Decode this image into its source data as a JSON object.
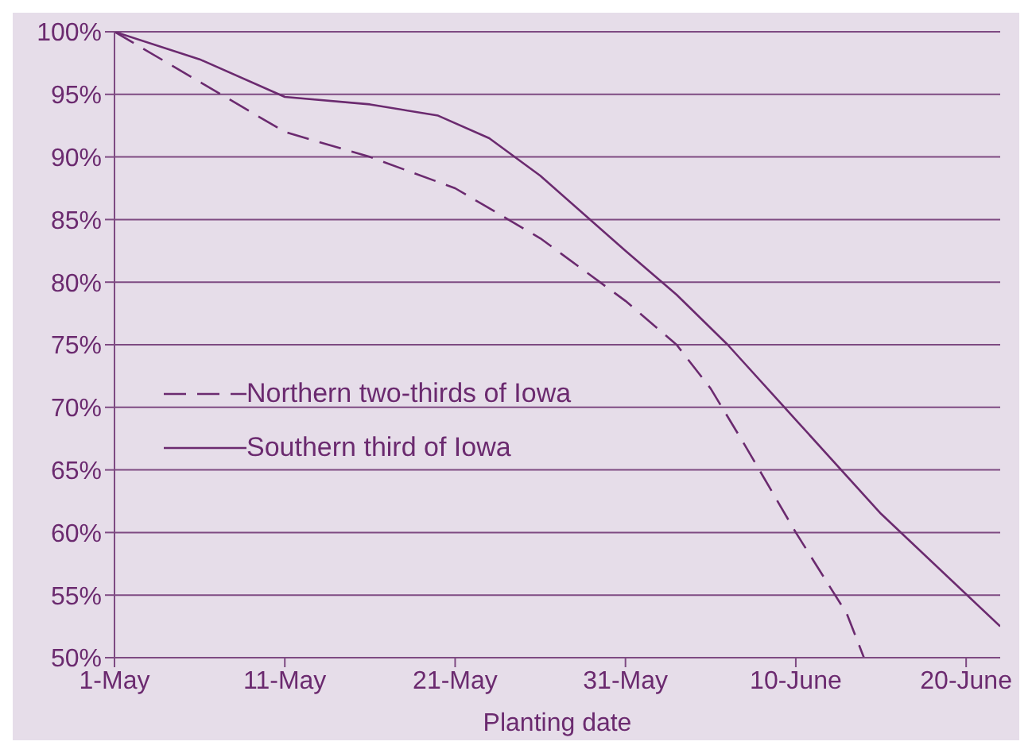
{
  "chart_data": {
    "type": "line",
    "xlabel": "Planting date",
    "xlim": [
      "--05-01",
      "--06-22"
    ],
    "xticks": [
      {
        "value": "--05-01",
        "label": "1-May"
      },
      {
        "value": "--05-11",
        "label": "11-May"
      },
      {
        "value": "--05-21",
        "label": "21-May"
      },
      {
        "value": "--05-31",
        "label": "31-May"
      },
      {
        "value": "--06-10",
        "label": "10-June"
      },
      {
        "value": "--06-20",
        "label": "20-June"
      }
    ],
    "ylim": [
      50,
      100
    ],
    "yticks": [
      {
        "value": 50,
        "label": "50%"
      },
      {
        "value": 55,
        "label": "55%"
      },
      {
        "value": 60,
        "label": "60%"
      },
      {
        "value": 65,
        "label": "65%"
      },
      {
        "value": 70,
        "label": "70%"
      },
      {
        "value": 75,
        "label": "75%"
      },
      {
        "value": 80,
        "label": "80%"
      },
      {
        "value": 85,
        "label": "85%"
      },
      {
        "value": 90,
        "label": "90%"
      },
      {
        "value": 95,
        "label": "95%"
      },
      {
        "value": 100,
        "label": "100%"
      }
    ],
    "grid": "y",
    "legend": "left",
    "series": [
      {
        "name": "Northern two-thirds of Iowa",
        "color": "#6b2a6f",
        "line_style": "dashed",
        "x": [
          "--05-01",
          "--05-06",
          "--05-11",
          "--05-16",
          "--05-21",
          "--05-26",
          "--05-31",
          "--06-03",
          "--06-05",
          "--06-07",
          "--06-10",
          "--06-13",
          "--06-14"
        ],
        "values": [
          100,
          96,
          92,
          90,
          87.5,
          83.5,
          78.5,
          75,
          71.5,
          67,
          60,
          53.5,
          50
        ]
      },
      {
        "name": "Southern third of Iowa",
        "color": "#6b2a6f",
        "line_style": "solid",
        "x": [
          "--05-01",
          "--05-06",
          "--05-11",
          "--05-16",
          "--05-20",
          "--05-23",
          "--05-26",
          "--05-31",
          "--06-03",
          "--06-06",
          "--06-10",
          "--06-15",
          "--06-22"
        ],
        "values": [
          100,
          97.8,
          94.8,
          94.2,
          93.3,
          91.5,
          88.5,
          82.5,
          79,
          75,
          69,
          61.5,
          52.5
        ]
      }
    ]
  }
}
